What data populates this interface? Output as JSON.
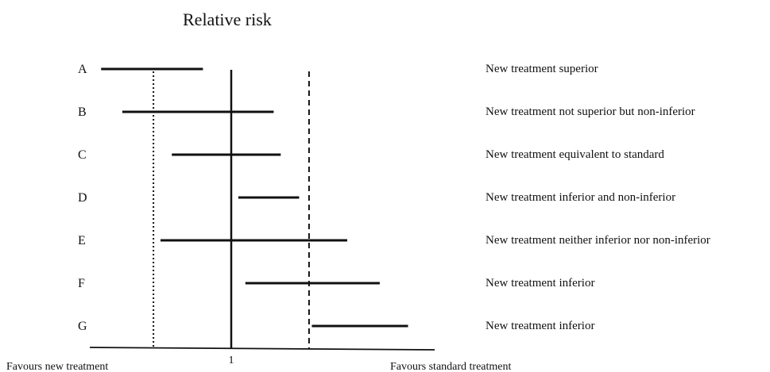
{
  "title": "Relative risk",
  "rows": [
    {
      "label": "A",
      "lo": 0.08,
      "hi": 0.8,
      "desc": "New treatment superior"
    },
    {
      "label": "B",
      "lo": 0.23,
      "hi": 1.3,
      "desc": "New treatment not superior but non-inferior"
    },
    {
      "label": "C",
      "lo": 0.58,
      "hi": 1.35,
      "desc": "New treatment equivalent to standard"
    },
    {
      "label": "D",
      "lo": 1.05,
      "hi": 1.48,
      "desc": "New treatment inferior and non-inferior"
    },
    {
      "label": "E",
      "lo": 0.5,
      "hi": 1.82,
      "desc": "New treatment neither inferior nor non-inferior"
    },
    {
      "label": "F",
      "lo": 1.1,
      "hi": 2.05,
      "desc": "New treatment inferior"
    },
    {
      "label": "G",
      "lo": 1.57,
      "hi": 2.25,
      "desc": "New treatment inferior"
    }
  ],
  "reference_value": 1,
  "tick_label": "1",
  "lower_margin": 0.45,
  "upper_margin": 1.55,
  "footer": {
    "left": "Favours new treatment",
    "right": "Favours standard treatment"
  }
}
